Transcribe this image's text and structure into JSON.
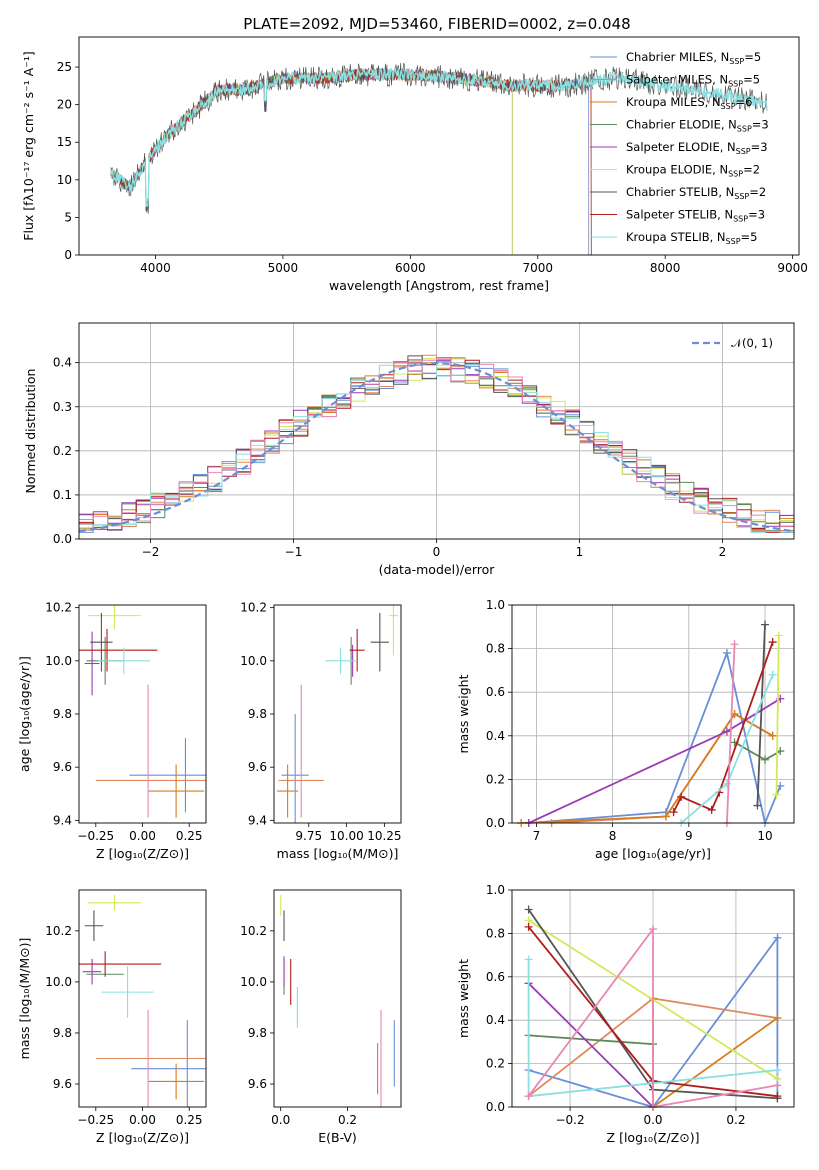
{
  "figure": {
    "title": "PLATE=2092, MJD=53460, FIBERID=0002, z=0.048"
  },
  "colors": {
    "Chabrier MILES": "#6a8fd6",
    "Salpeter MILES": "#e0895e",
    "Kroupa MILES": "#d97c1f",
    "Chabrier ELODIE": "#5c8a5a",
    "Salpeter ELODIE": "#9b3bb8",
    "Kroupa ELODIE": "#d3e85a",
    "Chabrier STELIB": "#555555",
    "Salpeter STELIB": "#b01d1d",
    "Kroupa STELIB": "#8adfe0",
    "pink": "#e887b4",
    "normal": "#6a8fd6"
  },
  "chart_data": [
    {
      "type": "line",
      "id": "spectrum",
      "title": "PLATE=2092, MJD=53460, FIBERID=0002, z=0.048",
      "xlabel": "wavelength [Angstrom, rest frame]",
      "ylabel": "Flux [fλ10⁻¹⁷ erg cm⁻² s⁻¹ A⁻¹]",
      "xlim": [
        3400,
        9050
      ],
      "ylim": [
        0,
        29
      ],
      "xticks": [
        4000,
        5000,
        6000,
        7000,
        8000,
        9000
      ],
      "yticks": [
        0,
        5,
        10,
        15,
        20,
        25
      ],
      "legend_position": "upper-right",
      "legend": [
        "Chabrier MILES, N_SSP=5",
        "Salpeter MILES, N_SSP=5",
        "Kroupa MILES, N_SSP=6",
        "Chabrier ELODIE, N_SSP=3",
        "Salpeter ELODIE, N_SSP=3",
        "Kroupa ELODIE, N_SSP=2",
        "Chabrier STELIB, N_SSP=2",
        "Salpeter STELIB, N_SSP=3",
        "Kroupa STELIB, N_SSP=5"
      ],
      "continuum": {
        "x": [
          3650,
          3800,
          3950,
          4100,
          4300,
          4500,
          4700,
          5000,
          5300,
          5600,
          6000,
          6400,
          6800,
          7200,
          7600,
          8000,
          8400,
          8800
        ],
        "y": [
          11,
          9,
          13,
          16,
          19,
          22,
          22,
          23.5,
          23.5,
          24,
          24,
          23.5,
          22.5,
          22.5,
          23.5,
          22.5,
          21.5,
          20
        ]
      },
      "series_ends": {
        "Chabrier MILES": 7400,
        "Salpeter MILES": 7400,
        "Kroupa MILES": 7420,
        "Chabrier ELODIE": 6800,
        "Salpeter ELODIE": 6800,
        "Kroupa ELODIE": 6800,
        "Chabrier STELIB": 8800,
        "Salpeter STELIB": 7420,
        "Kroupa STELIB": 8800
      }
    },
    {
      "type": "line",
      "id": "residuals",
      "xlabel": "(data-model)/error",
      "ylabel": "Normed distribution",
      "xlim": [
        -2.5,
        2.5
      ],
      "ylim": [
        0,
        0.49
      ],
      "xticks": [
        -2,
        -1,
        0,
        1,
        2
      ],
      "yticks": [
        0.0,
        0.1,
        0.2,
        0.3,
        0.4
      ],
      "grid": true,
      "legend": [
        "𝒩(0, 1)"
      ],
      "legend_position": "upper-right",
      "bin_width": 0.1,
      "bin_start": -2.5
    },
    {
      "type": "scatter",
      "id": "age-vs-Z",
      "xlabel": "Z [log₁₀(Z/Z⊙)]",
      "ylabel": "age  [log₁₀(age/yr)]",
      "xlim": [
        -0.34,
        0.34
      ],
      "ylim": [
        9.39,
        10.21
      ],
      "xticks": [
        -0.25,
        0.0,
        0.25
      ],
      "xticklabels": [
        "−0.25",
        "0.00",
        "0.25"
      ],
      "yticks": [
        9.4,
        9.6,
        9.8,
        10.0,
        10.2
      ],
      "points": [
        {
          "c": "Chabrier MILES",
          "x": 0.23,
          "y": 9.57,
          "ex": 0.3,
          "ey": 0.14
        },
        {
          "c": "Salpeter MILES",
          "x": 0.05,
          "y": 9.55,
          "ex": 0.3,
          "ey": 0.0
        },
        {
          "c": "Kroupa MILES",
          "x": 0.18,
          "y": 9.51,
          "ex": 0.15,
          "ey": 0.1
        },
        {
          "c": "Chabrier ELODIE",
          "x": -0.2,
          "y": 10.0,
          "ex": 0.1,
          "ey": 0.09
        },
        {
          "c": "Salpeter ELODIE",
          "x": -0.27,
          "y": 9.99,
          "ex": 0.04,
          "ey": 0.12
        },
        {
          "c": "Kroupa ELODIE",
          "x": -0.15,
          "y": 10.17,
          "ex": 0.14,
          "ey": 0.05
        },
        {
          "c": "Chabrier STELIB",
          "x": -0.22,
          "y": 10.07,
          "ex": 0.06,
          "ey": 0.11
        },
        {
          "c": "Salpeter STELIB",
          "x": -0.19,
          "y": 10.04,
          "ex": 0.27,
          "ey": 0.08
        },
        {
          "c": "Kroupa STELIB",
          "x": -0.1,
          "y": 10.0,
          "ex": 0.14,
          "ey": 0.05
        },
        {
          "c": "pink",
          "x": 0.03,
          "y": 9.66,
          "ex": 0.0,
          "ey": 0.25
        }
      ]
    },
    {
      "type": "scatter",
      "id": "age-vs-mass",
      "xlabel": "mass [log₁₀(M/M⊙)]",
      "xlim": [
        9.52,
        10.36
      ],
      "ylim": [
        9.39,
        10.21
      ],
      "xticks": [
        9.75,
        10.0,
        10.25
      ],
      "xticklabels": [
        "9.75",
        "10.00",
        "10.25"
      ],
      "yticks": [
        9.4,
        9.6,
        9.8,
        10.0,
        10.2
      ],
      "points": [
        {
          "c": "Chabrier MILES",
          "x": 9.66,
          "y": 9.57,
          "ex": 0.09,
          "ey": 0.23
        },
        {
          "c": "Salpeter MILES",
          "x": 9.7,
          "y": 9.55,
          "ex": 0.15,
          "ey": 0.0
        },
        {
          "c": "Kroupa MILES",
          "x": 9.61,
          "y": 9.51,
          "ex": 0.07,
          "ey": 0.1
        },
        {
          "c": "Chabrier ELODIE",
          "x": 10.03,
          "y": 10.0,
          "ex": 0.0,
          "ey": 0.09
        },
        {
          "c": "Salpeter ELODIE",
          "x": 10.04,
          "y": 10.0,
          "ex": 0.0,
          "ey": 0.06
        },
        {
          "c": "Kroupa ELODIE",
          "x": 10.31,
          "y": 10.17,
          "ex": 0.03,
          "ey": 0.15
        },
        {
          "c": "Chabrier STELIB",
          "x": 10.22,
          "y": 10.07,
          "ex": 0.06,
          "ey": 0.11
        },
        {
          "c": "Salpeter STELIB",
          "x": 10.07,
          "y": 10.04,
          "ex": 0.05,
          "ey": 0.08
        },
        {
          "c": "Kroupa STELIB",
          "x": 9.96,
          "y": 10.0,
          "ex": 0.1,
          "ey": 0.05
        },
        {
          "c": "pink",
          "x": 9.7,
          "y": 9.66,
          "ex": 0.0,
          "ey": 0.25
        }
      ]
    },
    {
      "type": "line",
      "id": "massweight-vs-age",
      "xlabel": "age  [log₁₀(age/yr)]",
      "ylabel": "mass weight",
      "xlim": [
        6.68,
        10.38
      ],
      "ylim": [
        0,
        1.0
      ],
      "xticks": [
        7,
        8,
        9,
        10
      ],
      "yticks": [
        0.0,
        0.2,
        0.4,
        0.6,
        0.8,
        1.0
      ],
      "grid": true,
      "series": [
        {
          "c": "Chabrier MILES",
          "x": [
            6.9,
            8.7,
            9.5,
            10.0,
            10.2
          ],
          "y": [
            0.0,
            0.05,
            0.78,
            0.0,
            0.17
          ]
        },
        {
          "c": "Salpeter MILES",
          "x": [
            6.8,
            7.2,
            8.7,
            9.6,
            10.1
          ],
          "y": [
            0.0,
            0.0,
            0.03,
            0.5,
            0.4
          ]
        },
        {
          "c": "Kroupa MILES",
          "x": [
            6.8,
            8.7,
            9.6,
            10.1
          ],
          "y": [
            0.0,
            0.03,
            0.5,
            0.4
          ]
        },
        {
          "c": "Chabrier ELODIE",
          "x": [
            9.6,
            10.0,
            10.2
          ],
          "y": [
            0.37,
            0.29,
            0.33
          ]
        },
        {
          "c": "Salpeter ELODIE",
          "x": [
            6.9,
            9.5,
            10.2
          ],
          "y": [
            0.0,
            0.42,
            0.57
          ]
        },
        {
          "c": "Kroupa ELODIE",
          "x": [
            10.15,
            10.18
          ],
          "y": [
            0.13,
            0.86
          ]
        },
        {
          "c": "Chabrier STELIB",
          "x": [
            9.9,
            10.0
          ],
          "y": [
            0.08,
            0.91
          ]
        },
        {
          "c": "Salpeter STELIB",
          "x": [
            8.8,
            8.9,
            9.3,
            9.4,
            10.1
          ],
          "y": [
            0.05,
            0.12,
            0.06,
            0.14,
            0.83
          ]
        },
        {
          "c": "Kroupa STELIB",
          "x": [
            8.9,
            9.5,
            10.1
          ],
          "y": [
            0.0,
            0.18,
            0.68
          ]
        },
        {
          "c": "pink",
          "x": [
            9.5,
            9.6
          ],
          "y": [
            0.0,
            0.82
          ]
        }
      ]
    },
    {
      "type": "scatter",
      "id": "mass-vs-Z",
      "xlabel": "Z [log₁₀(Z/Z⊙)]",
      "ylabel": "mass [log₁₀(M/M⊙)]",
      "xlim": [
        -0.34,
        0.34
      ],
      "ylim": [
        9.51,
        10.36
      ],
      "xticks": [
        -0.25,
        0.0,
        0.25
      ],
      "xticklabels": [
        "−0.25",
        "0.00",
        "0.25"
      ],
      "yticks": [
        9.6,
        9.8,
        10.0,
        10.2
      ],
      "points": [
        {
          "c": "Chabrier MILES",
          "x": 0.24,
          "y": 9.66,
          "ex": 0.3,
          "ey": 0.19
        },
        {
          "c": "Salpeter MILES",
          "x": 0.05,
          "y": 9.7,
          "ex": 0.3,
          "ey": 0.0
        },
        {
          "c": "Kroupa MILES",
          "x": 0.18,
          "y": 9.61,
          "ex": 0.15,
          "ey": 0.07
        },
        {
          "c": "Chabrier ELODIE",
          "x": -0.2,
          "y": 10.03,
          "ex": 0.1,
          "ey": 0.0
        },
        {
          "c": "Salpeter ELODIE",
          "x": -0.27,
          "y": 10.04,
          "ex": 0.05,
          "ey": 0.05
        },
        {
          "c": "Kroupa ELODIE",
          "x": -0.15,
          "y": 10.31,
          "ex": 0.14,
          "ey": 0.03
        },
        {
          "c": "Chabrier STELIB",
          "x": -0.26,
          "y": 10.22,
          "ex": 0.05,
          "ey": 0.06
        },
        {
          "c": "Salpeter STELIB",
          "x": -0.2,
          "y": 10.07,
          "ex": 0.3,
          "ey": 0.05
        },
        {
          "c": "Kroupa STELIB",
          "x": -0.08,
          "y": 9.96,
          "ex": 0.14,
          "ey": 0.1
        },
        {
          "c": "pink",
          "x": 0.03,
          "y": 9.7,
          "ex": 0.0,
          "ey": 0.19
        }
      ]
    },
    {
      "type": "scatter",
      "id": "mass-vs-EBV",
      "xlabel": "E(B-V)",
      "xlim": [
        -0.02,
        0.36
      ],
      "ylim": [
        9.51,
        10.36
      ],
      "xticks": [
        0.0,
        0.2
      ],
      "xticklabels": [
        "0.0",
        "0.2"
      ],
      "yticks": [
        9.6,
        9.8,
        10.0,
        10.2
      ],
      "points": [
        {
          "c": "Chabrier MILES",
          "x": 0.34,
          "y": 9.72,
          "ex": 0.0,
          "ey": 0.13
        },
        {
          "c": "Kroupa MILES",
          "x": 0.29,
          "y": 9.66,
          "ex": 0.0,
          "ey": 0.1
        },
        {
          "c": "pink",
          "x": 0.3,
          "y": 9.7,
          "ex": 0.0,
          "ey": 0.19
        },
        {
          "c": "Chabrier ELODIE",
          "x": 0.01,
          "y": 10.02,
          "ex": 0.0,
          "ey": 0.07
        },
        {
          "c": "Salpeter ELODIE",
          "x": 0.01,
          "y": 10.04,
          "ex": 0.0,
          "ey": 0.06
        },
        {
          "c": "Kroupa ELODIE",
          "x": 0.0,
          "y": 10.3,
          "ex": 0.0,
          "ey": 0.04
        },
        {
          "c": "Chabrier STELIB",
          "x": 0.01,
          "y": 10.22,
          "ex": 0.0,
          "ey": 0.06
        },
        {
          "c": "Salpeter STELIB",
          "x": 0.03,
          "y": 10.0,
          "ex": 0.0,
          "ey": 0.09
        },
        {
          "c": "Kroupa STELIB",
          "x": 0.05,
          "y": 9.9,
          "ex": 0.0,
          "ey": 0.08
        }
      ]
    },
    {
      "type": "line",
      "id": "massweight-vs-Z",
      "xlabel": "Z [log₁₀(Z/Z⊙)]",
      "ylabel": "mass weight",
      "xlim": [
        -0.34,
        0.34
      ],
      "ylim": [
        0,
        1.0
      ],
      "xticks": [
        -0.2,
        0.0,
        0.2
      ],
      "xticklabels": [
        "−0.2",
        "0.0",
        "0.2"
      ],
      "yticks": [
        0.0,
        0.2,
        0.4,
        0.6,
        0.8,
        1.0
      ],
      "grid": true,
      "series": [
        {
          "c": "Chabrier MILES",
          "x": [
            -0.3,
            0.0,
            0.3,
            0.3
          ],
          "y": [
            0.17,
            0.0,
            0.78,
            0.04
          ]
        },
        {
          "c": "Salpeter MILES",
          "x": [
            -0.3,
            0.0,
            0.3
          ],
          "y": [
            0.05,
            0.5,
            0.41
          ]
        },
        {
          "c": "Kroupa MILES",
          "x": [
            0.0,
            0.0,
            0.3
          ],
          "y": [
            0.5,
            0.0,
            0.41
          ]
        },
        {
          "c": "Chabrier ELODIE",
          "x": [
            -0.3,
            0.0
          ],
          "y": [
            0.33,
            0.29
          ]
        },
        {
          "c": "Salpeter ELODIE",
          "x": [
            -0.3,
            0.0
          ],
          "y": [
            0.57,
            0.0
          ]
        },
        {
          "c": "Kroupa ELODIE",
          "x": [
            -0.3,
            0.3
          ],
          "y": [
            0.86,
            0.13
          ]
        },
        {
          "c": "Chabrier STELIB",
          "x": [
            -0.3,
            0.0,
            0.3
          ],
          "y": [
            0.91,
            0.08,
            0.04
          ]
        },
        {
          "c": "Salpeter STELIB",
          "x": [
            -0.3,
            0.0,
            0.3
          ],
          "y": [
            0.83,
            0.12,
            0.05
          ]
        },
        {
          "c": "Kroupa STELIB",
          "x": [
            -0.3,
            -0.3,
            0.3
          ],
          "y": [
            0.68,
            0.05,
            0.17
          ]
        },
        {
          "c": "pink",
          "x": [
            -0.3,
            0.0,
            0.0,
            0.3
          ],
          "y": [
            0.05,
            0.82,
            0.0,
            0.1
          ]
        }
      ]
    }
  ]
}
